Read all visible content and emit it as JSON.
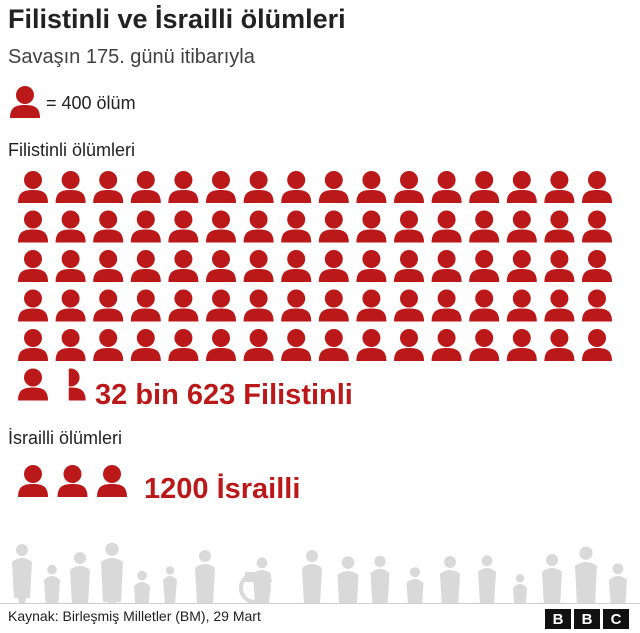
{
  "title": "Filistinli ve İsrailli ölümleri",
  "subtitle": "Savaşın 175. günü itibarıyla",
  "legend": {
    "icon": "person-icon",
    "text": "= 400 ölüm"
  },
  "sections": [
    {
      "label": "Filistinli ölümleri",
      "total_text": "32 bin 623 Filistinli"
    },
    {
      "label": "İsrailli ölümleri",
      "total_text": "1200 İsrailli"
    }
  ],
  "chart_data": {
    "type": "pictogram",
    "unit": 400,
    "unit_label": "ölüm",
    "categories": [
      "Filistinli ölümleri",
      "İsrailli ölümleri"
    ],
    "values": [
      32623,
      1200
    ],
    "icon_counts": [
      81.56,
      3
    ]
  },
  "footer": {
    "source": "Kaynak: Birleşmiş Milletler (BM), 29 Mart",
    "logo_letters": [
      "B",
      "B",
      "C"
    ]
  },
  "colors": {
    "accent": "#bb1919",
    "silhouette": "#d9d9d9",
    "text": "#222222"
  }
}
